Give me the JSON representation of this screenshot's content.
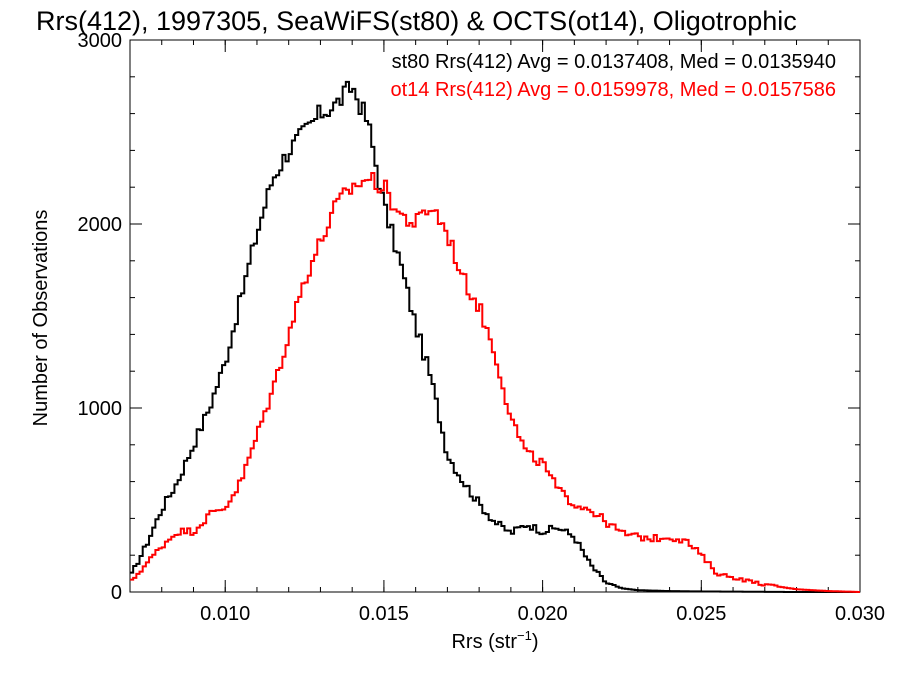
{
  "chart_data": {
    "type": "line",
    "step": true,
    "title": "Rrs(412), 1997305, SeaWiFS(st80) & OCTS(ot14), Oligotrophic",
    "xlabel": "Rrs (str",
    "xlabel_sup": "−1",
    "xlabel_close": ")",
    "ylabel": "Number of Observations",
    "xlim": [
      0.007,
      0.03
    ],
    "ylim": [
      0,
      3000
    ],
    "x_ticks": [
      0.01,
      0.015,
      0.02,
      0.025,
      0.03
    ],
    "x_tick_labels": [
      "0.010",
      "0.015",
      "0.020",
      "0.025",
      "0.030"
    ],
    "y_ticks": [
      0,
      1000,
      2000,
      3000
    ],
    "y_tick_labels": [
      "0",
      "1000",
      "2000",
      "3000"
    ],
    "grid": false,
    "legend_placement": "top-right",
    "series": [
      {
        "name": "st80 Rrs(412) Avg = 0.0137408, Med = 0.0135940",
        "color": "#000000",
        "x": [
          0.007,
          0.0075,
          0.008,
          0.0085,
          0.009,
          0.0095,
          0.01,
          0.0105,
          0.011,
          0.0115,
          0.012,
          0.0125,
          0.013,
          0.0135,
          0.014,
          0.0145,
          0.015,
          0.0155,
          0.016,
          0.0165,
          0.017,
          0.0175,
          0.018,
          0.0185,
          0.019,
          0.0195,
          0.02,
          0.0205,
          0.021,
          0.0215,
          0.022,
          0.0225,
          0.023,
          0.024,
          0.025,
          0.026,
          0.027,
          0.028,
          0.029,
          0.03
        ],
        "y": [
          80,
          250,
          450,
          600,
          800,
          1000,
          1250,
          1600,
          1950,
          2250,
          2400,
          2500,
          2600,
          2650,
          2750,
          2550,
          2100,
          1800,
          1450,
          1150,
          750,
          600,
          480,
          380,
          320,
          370,
          330,
          350,
          300,
          150,
          50,
          20,
          10,
          5,
          3,
          2,
          1,
          0,
          0,
          0
        ]
      },
      {
        "name": "ot14 Rrs(412) Avg = 0.0159978, Med = 0.0157586",
        "color": "#ff0000",
        "x": [
          0.007,
          0.0075,
          0.008,
          0.0085,
          0.009,
          0.0095,
          0.01,
          0.0105,
          0.011,
          0.0115,
          0.012,
          0.0125,
          0.013,
          0.0135,
          0.014,
          0.0145,
          0.015,
          0.0155,
          0.016,
          0.0165,
          0.017,
          0.0175,
          0.018,
          0.0185,
          0.019,
          0.0195,
          0.02,
          0.0205,
          0.021,
          0.0215,
          0.022,
          0.0225,
          0.023,
          0.0235,
          0.024,
          0.0245,
          0.025,
          0.0255,
          0.026,
          0.027,
          0.028,
          0.029,
          0.03
        ],
        "y": [
          50,
          150,
          250,
          330,
          330,
          420,
          460,
          600,
          850,
          1100,
          1400,
          1700,
          1900,
          2100,
          2200,
          2250,
          2200,
          2050,
          2000,
          2100,
          1950,
          1700,
          1550,
          1300,
          950,
          750,
          700,
          550,
          480,
          450,
          380,
          320,
          300,
          290,
          300,
          280,
          200,
          100,
          80,
          40,
          15,
          5,
          0
        ]
      }
    ]
  }
}
